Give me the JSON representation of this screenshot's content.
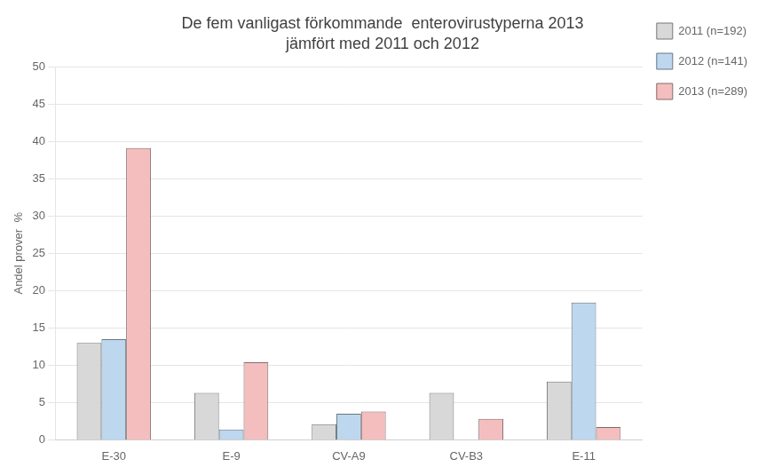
{
  "chart_data": {
    "type": "bar",
    "title": "De fem vanligast förkommande  enterovirustyperna 2013",
    "subtitle": "jämfört med 2011 och 2012",
    "ylabel": "Andel prover  %",
    "categories": [
      "E-30",
      "E-9",
      "CV-A9",
      "CV-B3",
      "E-11"
    ],
    "series": [
      {
        "name": "2011 (n=192)",
        "color": "#D8D8D8",
        "values": [
          13.0,
          6.3,
          2.1,
          6.3,
          7.8
        ]
      },
      {
        "name": "2012 (n=141)",
        "color": "#BDD7EE",
        "values": [
          13.5,
          1.4,
          3.5,
          0.0,
          18.4
        ]
      },
      {
        "name": "2013 (n=289)",
        "color": "#F4BEBE",
        "values": [
          39.1,
          10.4,
          3.8,
          2.8,
          1.7
        ]
      }
    ],
    "ylim": [
      0,
      50
    ],
    "yticks": [
      0,
      5,
      10,
      15,
      20,
      25,
      30,
      35,
      40,
      45,
      50
    ],
    "grid": true,
    "legend": "right"
  }
}
